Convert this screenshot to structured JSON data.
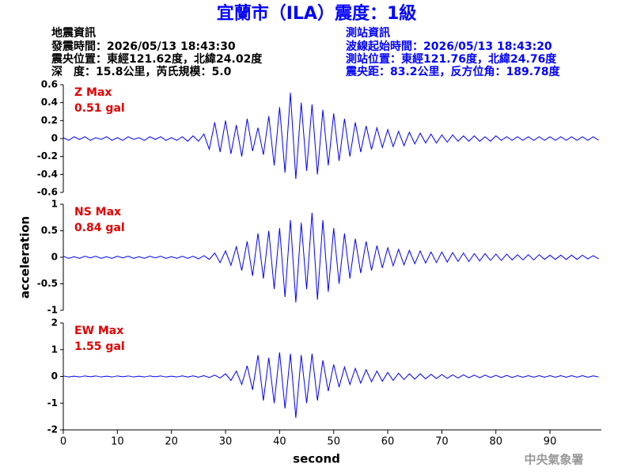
{
  "header": {
    "title": "宜蘭市（ILA）震度：1級",
    "quake_info": [
      "地震資訊",
      "發震時間：2026/05/13 18:43:30",
      "震央位置：東經121.62度，北緯24.02度",
      "深　度：15.8公里，芮氏規模：5.0"
    ],
    "station_info": [
      "測站資訊",
      "波線起始時間：2026/05/13 18:43:20",
      "測站位置：東經121.76度，北緯24.76度",
      "震央距：83.2公里，反方位角：189.78度"
    ]
  },
  "footer": "中央氣象署",
  "chart_data": [
    {
      "type": "line",
      "annotations": [
        "Z Max",
        "0.51 gal"
      ],
      "annotation_color": "#e00000",
      "color": "#0000ff",
      "xlim": [
        0,
        99.5
      ],
      "ylim": [
        -0.6,
        0.6
      ],
      "yticks": [
        -0.6,
        -0.4,
        -0.2,
        0,
        0.2,
        0.4,
        0.6
      ],
      "x": [
        0,
        1,
        2,
        3,
        4,
        5,
        6,
        7,
        8,
        9,
        10,
        11,
        12,
        13,
        14,
        15,
        16,
        17,
        18,
        19,
        20,
        21,
        22,
        23,
        24,
        25,
        26,
        27,
        28,
        29,
        30,
        31,
        32,
        33,
        34,
        35,
        36,
        37,
        38,
        39,
        40,
        41,
        42,
        43,
        44,
        45,
        46,
        47,
        48,
        49,
        50,
        51,
        52,
        53,
        54,
        55,
        56,
        57,
        58,
        59,
        60,
        61,
        62,
        63,
        64,
        65,
        66,
        67,
        68,
        69,
        70,
        71,
        72,
        73,
        74,
        75,
        76,
        77,
        78,
        79,
        80,
        81,
        82,
        83,
        84,
        85,
        86,
        87,
        88,
        89,
        90,
        91,
        92,
        93,
        94,
        95,
        96,
        97,
        98,
        99
      ],
      "values": [
        0.01,
        -0.02,
        0.02,
        -0.01,
        0.02,
        -0.02,
        0.01,
        -0.01,
        0.02,
        -0.02,
        0.01,
        -0.02,
        0.02,
        -0.01,
        0.01,
        -0.02,
        0.02,
        -0.01,
        0.02,
        -0.02,
        0.01,
        -0.02,
        0.02,
        -0.03,
        0.03,
        -0.03,
        0.05,
        -0.12,
        0.18,
        -0.15,
        0.2,
        -0.17,
        0.15,
        -0.2,
        0.22,
        -0.14,
        0.12,
        -0.18,
        0.25,
        -0.3,
        0.35,
        -0.38,
        0.51,
        -0.45,
        0.4,
        -0.36,
        0.38,
        -0.4,
        0.32,
        -0.3,
        0.28,
        -0.25,
        0.22,
        -0.2,
        0.18,
        -0.15,
        0.14,
        -0.12,
        0.12,
        -0.1,
        0.1,
        -0.09,
        0.08,
        -0.08,
        0.07,
        -0.06,
        0.06,
        -0.05,
        0.05,
        -0.05,
        0.04,
        -0.04,
        0.04,
        -0.03,
        0.03,
        -0.03,
        0.03,
        -0.03,
        0.02,
        -0.03,
        0.03,
        -0.02,
        0.02,
        -0.02,
        0.02,
        -0.02,
        0.02,
        -0.02,
        0.02,
        -0.02,
        0.02,
        -0.02,
        0.02,
        -0.02,
        0.02,
        -0.02,
        0.02,
        -0.02,
        0.02,
        -0.02
      ]
    },
    {
      "type": "line",
      "annotations": [
        "NS Max",
        "0.84 gal"
      ],
      "annotation_color": "#e00000",
      "color": "#0000ff",
      "ylabel": "acceleration",
      "xlim": [
        0,
        99.5
      ],
      "ylim": [
        -1,
        1
      ],
      "yticks": [
        -1,
        -0.5,
        0,
        0.5,
        1
      ],
      "x": [
        0,
        1,
        2,
        3,
        4,
        5,
        6,
        7,
        8,
        9,
        10,
        11,
        12,
        13,
        14,
        15,
        16,
        17,
        18,
        19,
        20,
        21,
        22,
        23,
        24,
        25,
        26,
        27,
        28,
        29,
        30,
        31,
        32,
        33,
        34,
        35,
        36,
        37,
        38,
        39,
        40,
        41,
        42,
        43,
        44,
        45,
        46,
        47,
        48,
        49,
        50,
        51,
        52,
        53,
        54,
        55,
        56,
        57,
        58,
        59,
        60,
        61,
        62,
        63,
        64,
        65,
        66,
        67,
        68,
        69,
        70,
        71,
        72,
        73,
        74,
        75,
        76,
        77,
        78,
        79,
        80,
        81,
        82,
        83,
        84,
        85,
        86,
        87,
        88,
        89,
        90,
        91,
        92,
        93,
        94,
        95,
        96,
        97,
        98,
        99
      ],
      "values": [
        0.02,
        -0.02,
        0.01,
        -0.02,
        0.02,
        -0.01,
        0.02,
        -0.02,
        0.01,
        -0.02,
        0.02,
        -0.01,
        0.02,
        -0.02,
        0.01,
        -0.02,
        0.02,
        -0.01,
        0.02,
        -0.02,
        0.01,
        -0.02,
        0.02,
        -0.02,
        0.02,
        -0.03,
        0.03,
        -0.04,
        0.08,
        -0.1,
        0.12,
        -0.15,
        0.2,
        -0.25,
        0.3,
        -0.35,
        0.45,
        -0.4,
        0.5,
        -0.6,
        0.55,
        -0.75,
        0.7,
        -0.85,
        0.65,
        -0.6,
        0.84,
        -0.8,
        0.7,
        -0.65,
        0.55,
        -0.5,
        0.45,
        -0.4,
        0.35,
        -0.3,
        0.3,
        -0.25,
        0.22,
        -0.2,
        0.18,
        -0.16,
        0.15,
        -0.14,
        0.13,
        -0.12,
        0.12,
        -0.11,
        0.1,
        -0.1,
        0.1,
        -0.09,
        0.09,
        -0.08,
        0.08,
        -0.08,
        0.07,
        -0.07,
        0.07,
        -0.06,
        0.06,
        -0.06,
        0.06,
        -0.05,
        0.05,
        -0.05,
        0.05,
        -0.05,
        0.05,
        -0.04,
        0.04,
        -0.04,
        0.04,
        -0.04,
        0.04,
        -0.04,
        0.04,
        -0.03,
        0.03,
        -0.03
      ]
    },
    {
      "type": "line",
      "annotations": [
        "EW Max",
        "1.55 gal"
      ],
      "annotation_color": "#e00000",
      "color": "#0000ff",
      "xlabel": "second",
      "xlim": [
        0,
        99.5
      ],
      "xticks": [
        0,
        10,
        20,
        30,
        40,
        50,
        60,
        70,
        80,
        90
      ],
      "ylim": [
        -2,
        2
      ],
      "yticks": [
        -2,
        -1,
        0,
        1,
        2
      ],
      "x": [
        0,
        1,
        2,
        3,
        4,
        5,
        6,
        7,
        8,
        9,
        10,
        11,
        12,
        13,
        14,
        15,
        16,
        17,
        18,
        19,
        20,
        21,
        22,
        23,
        24,
        25,
        26,
        27,
        28,
        29,
        30,
        31,
        32,
        33,
        34,
        35,
        36,
        37,
        38,
        39,
        40,
        41,
        42,
        43,
        44,
        45,
        46,
        47,
        48,
        49,
        50,
        51,
        52,
        53,
        54,
        55,
        56,
        57,
        58,
        59,
        60,
        61,
        62,
        63,
        64,
        65,
        66,
        67,
        68,
        69,
        70,
        71,
        72,
        73,
        74,
        75,
        76,
        77,
        78,
        79,
        80,
        81,
        82,
        83,
        84,
        85,
        86,
        87,
        88,
        89,
        90,
        91,
        92,
        93,
        94,
        95,
        96,
        97,
        98,
        99
      ],
      "values": [
        0.02,
        -0.02,
        0.01,
        -0.02,
        0.02,
        -0.01,
        0.02,
        -0.02,
        0.01,
        -0.02,
        0.02,
        -0.01,
        0.02,
        -0.02,
        0.01,
        -0.02,
        0.02,
        -0.01,
        0.02,
        -0.02,
        0.01,
        -0.02,
        0.02,
        -0.02,
        0.02,
        -0.03,
        0.03,
        -0.04,
        0.05,
        -0.06,
        0.1,
        -0.15,
        0.2,
        -0.3,
        0.4,
        -0.5,
        0.8,
        -0.9,
        0.7,
        -1.0,
        0.9,
        -1.2,
        0.85,
        -1.55,
        0.8,
        -1.0,
        0.85,
        -0.9,
        0.6,
        -0.55,
        0.45,
        -0.4,
        0.35,
        -0.3,
        0.3,
        -0.25,
        0.25,
        -0.2,
        0.2,
        -0.18,
        0.15,
        -0.15,
        0.12,
        -0.12,
        0.1,
        -0.1,
        0.1,
        -0.09,
        0.08,
        -0.08,
        0.07,
        -0.07,
        0.06,
        -0.06,
        0.06,
        -0.05,
        0.05,
        -0.05,
        0.05,
        -0.04,
        0.04,
        -0.04,
        0.04,
        -0.04,
        0.03,
        -0.03,
        0.03,
        -0.03,
        0.03,
        -0.03,
        0.03,
        -0.03,
        0.03,
        -0.03,
        0.03,
        -0.03,
        0.03,
        -0.03,
        0.02,
        -0.02
      ]
    }
  ]
}
